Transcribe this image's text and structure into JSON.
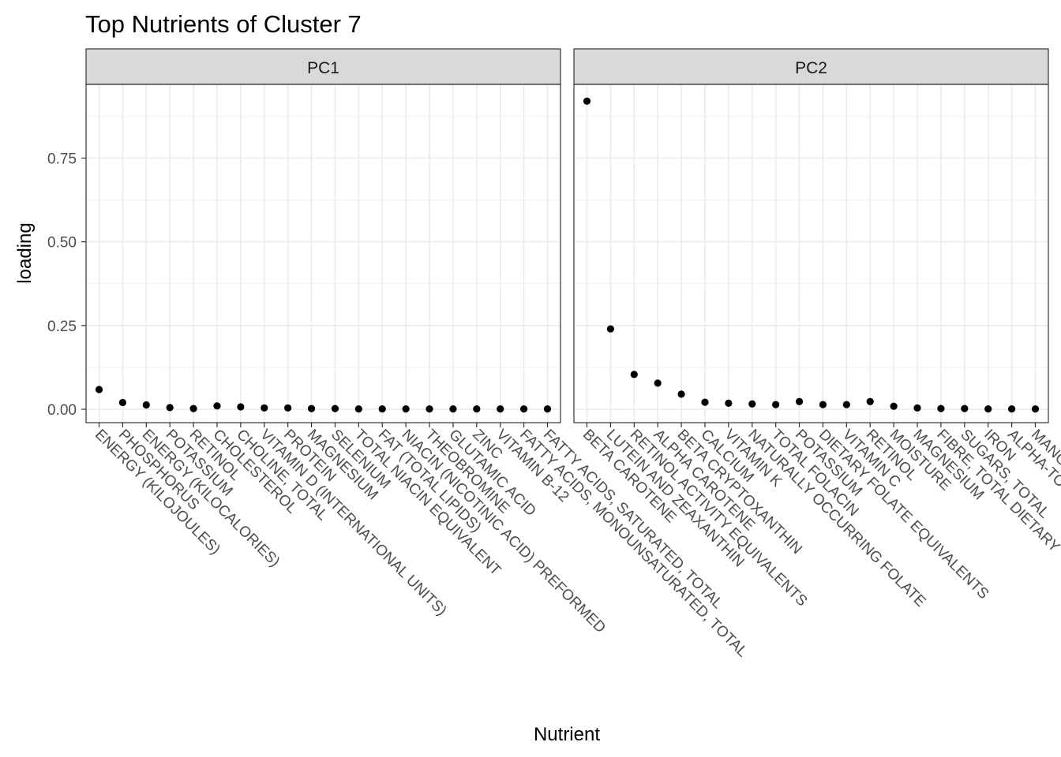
{
  "chart_data": {
    "type": "scatter",
    "title": "Top Nutrients of Cluster 7",
    "xlabel": "Nutrient",
    "ylabel": "loading",
    "ylim": [
      -0.04,
      0.97
    ],
    "yticks": [
      0.0,
      0.25,
      0.5,
      0.75
    ],
    "ytick_labels": [
      "0.00",
      "0.25",
      "0.50",
      "0.75"
    ],
    "grid": true,
    "facets": [
      {
        "name": "PC1",
        "categories": [
          "ENERGY (KILOJOULES)",
          "PHOSPHORUS",
          "ENERGY (KILOCALORIES)",
          "POTASSIUM",
          "RETINOL",
          "CHOLESTEROL",
          "CHOLINE, TOTAL",
          "VITAMIN D (INTERNATIONAL UNITS)",
          "PROTEIN",
          "MAGNESIUM",
          "SELENIUM",
          "TOTAL NIACIN EQUIVALENT",
          "FAT (TOTAL LIPIDS)",
          "NIACIN (NICOTINIC ACID) PREFORMED",
          "THEOBROMINE",
          "GLUTAMIC ACID",
          "ZINC",
          "VITAMIN B-12",
          "FATTY ACIDS, MONOUNSATURATED, TOTAL",
          "FATTY ACIDS, SATURATED, TOTAL"
        ],
        "values": [
          0.059,
          0.02,
          0.013,
          0.005,
          0.002,
          0.01,
          0.007,
          0.004,
          0.004,
          0.002,
          0.002,
          0.001,
          0.001,
          0.001,
          0.001,
          0.001,
          0.001,
          0.001,
          0.001,
          0.001
        ]
      },
      {
        "name": "PC2",
        "categories": [
          "BETA CAROTENE",
          "LUTEIN AND ZEAXANTHIN",
          "RETINOL ACTIVITY EQUIVALENTS",
          "ALPHA CAROTENE",
          "BETA CRYPTOXANTHIN",
          "CALCIUM",
          "VITAMIN K",
          "NATURALLY OCCURRING FOLATE",
          "TOTAL FOLACIN",
          "POTASSIUM",
          "DIETARY FOLATE EQUIVALENTS",
          "VITAMIN C",
          "RETINOL",
          "MOISTURE",
          "MAGNESIUM",
          "FIBRE, TOTAL DIETARY",
          "SUGARS, TOTAL",
          "IRON",
          "ALPHA-TOCOPHEROL",
          "MANGANESE"
        ],
        "values": [
          0.92,
          0.24,
          0.104,
          0.078,
          0.045,
          0.021,
          0.018,
          0.016,
          0.014,
          0.023,
          0.014,
          0.014,
          0.023,
          0.009,
          0.004,
          0.002,
          0.002,
          0.001,
          0.001,
          0.001
        ]
      }
    ]
  }
}
